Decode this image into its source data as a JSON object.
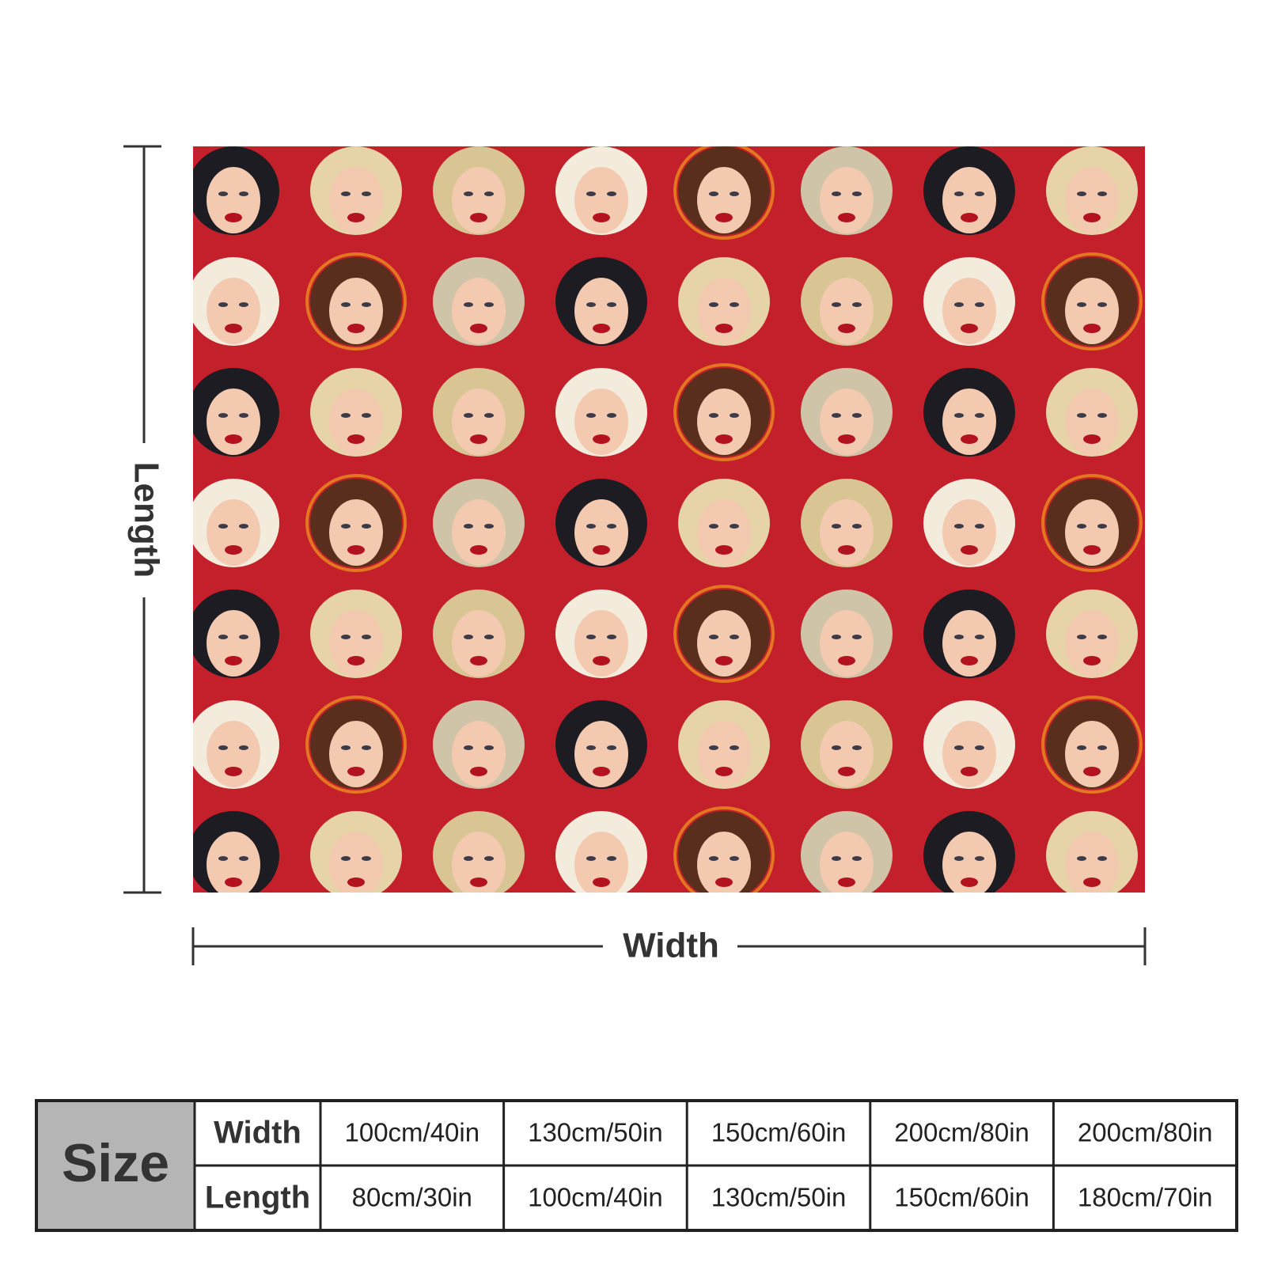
{
  "dimensions": {
    "length_label": "Length",
    "width_label": "Width"
  },
  "size_table": {
    "label": "Size",
    "rows": [
      {
        "header": "Width",
        "cells": [
          "100cm/40in",
          "130cm/50in",
          "150cm/60in",
          "200cm/80in",
          "200cm/80in"
        ]
      },
      {
        "header": "Length",
        "cells": [
          "80cm/30in",
          "100cm/40in",
          "130cm/50in",
          "150cm/60in",
          "180cm/70in"
        ]
      }
    ]
  }
}
